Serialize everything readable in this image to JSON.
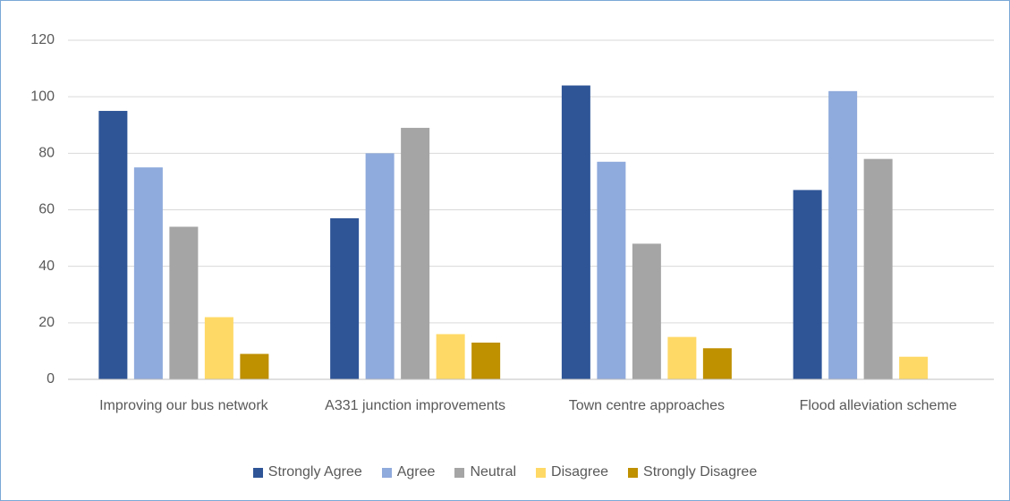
{
  "chart_data": {
    "type": "bar",
    "categories": [
      "Improving our bus network",
      "A331 junction improvements",
      "Town centre approaches",
      "Flood alleviation scheme"
    ],
    "series": [
      {
        "name": "Strongly Agree",
        "color": "#2f5597",
        "values": [
          95,
          57,
          104,
          67
        ]
      },
      {
        "name": "Agree",
        "color": "#8faadc",
        "values": [
          75,
          80,
          77,
          102
        ]
      },
      {
        "name": "Neutral",
        "color": "#a5a5a5",
        "values": [
          54,
          89,
          48,
          78
        ]
      },
      {
        "name": "Disagree",
        "color": "#ffd966",
        "values": [
          22,
          16,
          15,
          8
        ]
      },
      {
        "name": "Strongly Disagree",
        "color": "#bf9000",
        "values": [
          9,
          13,
          11,
          0
        ]
      }
    ],
    "ylim": [
      0,
      120
    ],
    "yticks": [
      0,
      20,
      40,
      60,
      80,
      100,
      120
    ],
    "grid": true,
    "legend": "bottom"
  }
}
